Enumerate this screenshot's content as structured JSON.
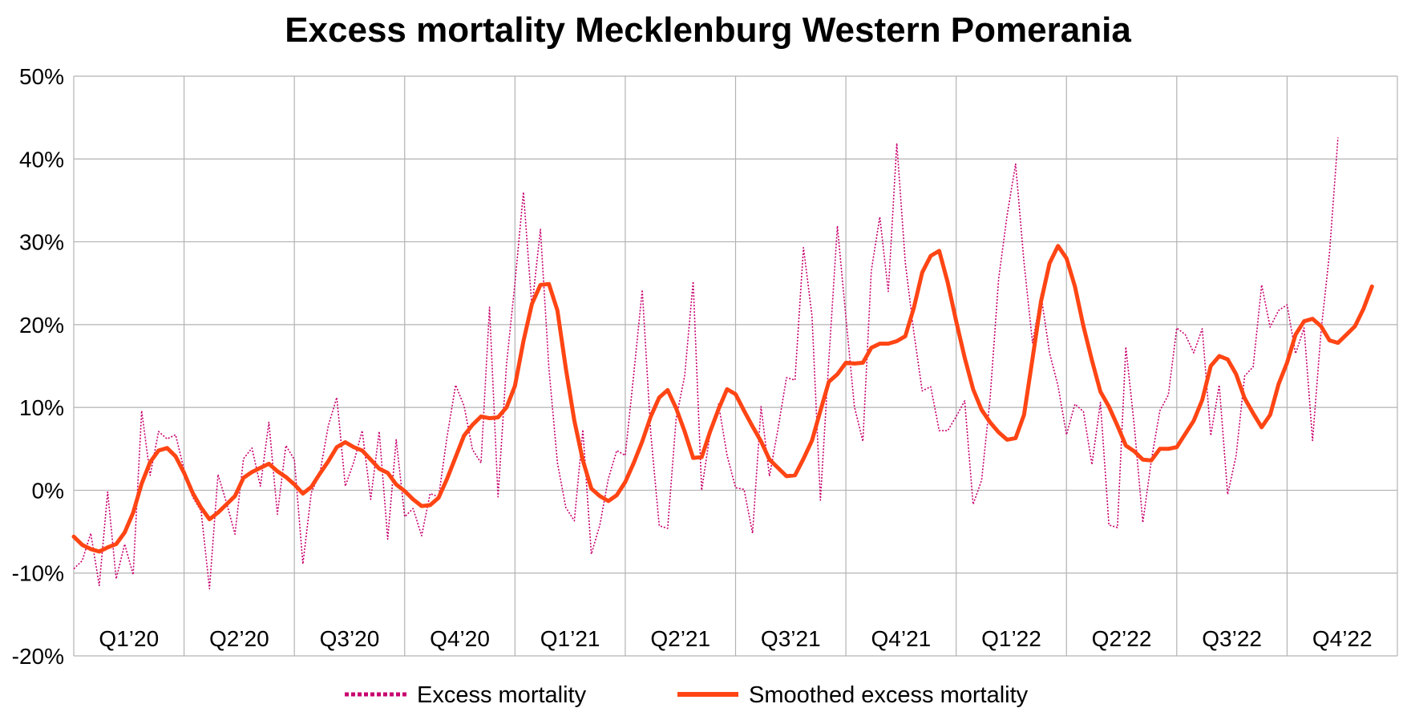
{
  "chart_data": {
    "type": "line",
    "title": "Excess mortality Mecklenburg Western Pomerania",
    "xlabel": "",
    "ylabel": "",
    "ylim": [
      -20,
      50
    ],
    "y_tick_values": [
      -20,
      -10,
      0,
      10,
      20,
      30,
      40,
      50
    ],
    "y_tick_labels": [
      "-20%",
      "-10%",
      "0%",
      "10%",
      "20%",
      "30%",
      "40%",
      "50%"
    ],
    "x_unit": "week index (weeks since first week of 2020)",
    "x_range": [
      0,
      156
    ],
    "quarter_labels": [
      "Q1’20",
      "Q2’20",
      "Q3’20",
      "Q4’20",
      "Q1’21",
      "Q2’21",
      "Q3’21",
      "Q4’21",
      "Q1’22",
      "Q2’22",
      "Q3’22",
      "Q4’22"
    ],
    "grid": true,
    "legend_position": "bottom",
    "series": [
      {
        "name": "Excess mortality",
        "color": "#c8006e",
        "style": "dotted",
        "values": [
          -9.5,
          -8.5,
          -5.2,
          -11.5,
          -0.2,
          -10.7,
          -6.5,
          -10.2,
          9.6,
          1.8,
          7.1,
          6.2,
          6.7,
          2.5,
          -0.8,
          -2.5,
          -11.9,
          1.9,
          -1.5,
          -5.3,
          3.8,
          5.1,
          0.5,
          8.2,
          -2.9,
          5.4,
          3.7,
          -8.9,
          -0.3,
          2.0,
          7.8,
          11.2,
          0.5,
          3.4,
          7.2,
          -1.1,
          7.1,
          -5.9,
          6.1,
          -3.2,
          -2.2,
          -5.5,
          -0.4,
          -0.8,
          6.5,
          12.7,
          10.2,
          4.9,
          3.3,
          22.1,
          -0.8,
          15.2,
          25.0,
          36.0,
          22.1,
          31.5,
          14.7,
          3.3,
          -2.1,
          -3.7,
          7.3,
          -7.7,
          -4.2,
          1.4,
          4.8,
          4.2,
          14.0,
          24.2,
          6.9,
          -4.3,
          -4.6,
          8.7,
          13.8,
          25.2,
          0.0,
          6.9,
          10.4,
          4.2,
          0.3,
          0.1,
          -5.2,
          10.1,
          1.7,
          7.4,
          13.6,
          13.3,
          29.3,
          21.1,
          -1.2,
          15.8,
          31.9,
          20.9,
          10.1,
          5.9,
          26.5,
          33.0,
          24.0,
          41.9,
          27.5,
          19.1,
          12.0,
          12.5,
          7.2,
          7.2,
          8.9,
          10.8,
          -1.7,
          1.2,
          11.1,
          25.5,
          33.2,
          39.4,
          27.5,
          17.8,
          23.6,
          16.6,
          12.6,
          6.7,
          10.4,
          9.5,
          3.1,
          10.6,
          -4.2,
          -4.5,
          17.3,
          7.7,
          -3.9,
          3.6,
          9.6,
          11.5,
          19.6,
          18.8,
          16.6,
          19.5,
          6.6,
          12.7,
          -0.5,
          4.2,
          13.8,
          14.9,
          24.8,
          19.7,
          21.7,
          22.4,
          16.5,
          19.6,
          6.0,
          19.2,
          28.6,
          42.6
        ]
      },
      {
        "name": "Smoothed excess mortality",
        "color": "#ff4514",
        "style": "solid",
        "values": [
          -5.6,
          -6.6,
          -7.1,
          -7.4,
          -6.9,
          -6.5,
          -5.1,
          -2.7,
          0.8,
          3.4,
          4.8,
          5.1,
          4.1,
          2.1,
          -0.3,
          -2.1,
          -3.5,
          -2.7,
          -1.7,
          -0.7,
          1.5,
          2.2,
          2.7,
          3.2,
          2.3,
          1.6,
          0.7,
          -0.4,
          0.4,
          2.0,
          3.5,
          5.2,
          5.8,
          5.2,
          4.8,
          3.7,
          2.6,
          2.1,
          0.7,
          -0.1,
          -1.1,
          -1.9,
          -1.8,
          -0.9,
          1.4,
          4.0,
          6.6,
          7.9,
          8.9,
          8.7,
          8.8,
          10.0,
          12.6,
          18.0,
          22.5,
          24.8,
          24.9,
          21.7,
          14.7,
          8.4,
          3.6,
          0.2,
          -0.7,
          -1.3,
          -0.6,
          1.0,
          3.3,
          5.9,
          8.9,
          11.2,
          12.1,
          9.9,
          7.1,
          3.9,
          4.0,
          7.1,
          9.8,
          12.2,
          11.6,
          9.6,
          7.7,
          5.9,
          3.7,
          2.7,
          1.7,
          1.8,
          3.8,
          6.0,
          9.6,
          13.1,
          14.0,
          15.4,
          15.3,
          15.4,
          17.2,
          17.7,
          17.7,
          18.0,
          18.6,
          22.0,
          26.3,
          28.3,
          28.9,
          25.1,
          20.4,
          16.0,
          12.2,
          9.7,
          8.2,
          7.0,
          6.1,
          6.3,
          9.1,
          15.9,
          22.8,
          27.4,
          29.5,
          28.0,
          24.6,
          19.8,
          15.7,
          11.9,
          10.1,
          7.8,
          5.4,
          4.7,
          3.7,
          3.6,
          5.0,
          5.0,
          5.2,
          6.8,
          8.4,
          10.9,
          15.0,
          16.2,
          15.8,
          14.0,
          11.1,
          9.3,
          7.6,
          9.1,
          12.8,
          15.4,
          18.8,
          20.4,
          20.7,
          19.8,
          18.1,
          17.8,
          18.8,
          19.8,
          21.9,
          24.6
        ]
      }
    ]
  },
  "legend": {
    "items": [
      {
        "label": "Excess mortality",
        "color": "#c8006e",
        "style": "dotted"
      },
      {
        "label": "Smoothed excess mortality",
        "color": "#ff4514",
        "style": "solid"
      }
    ]
  }
}
